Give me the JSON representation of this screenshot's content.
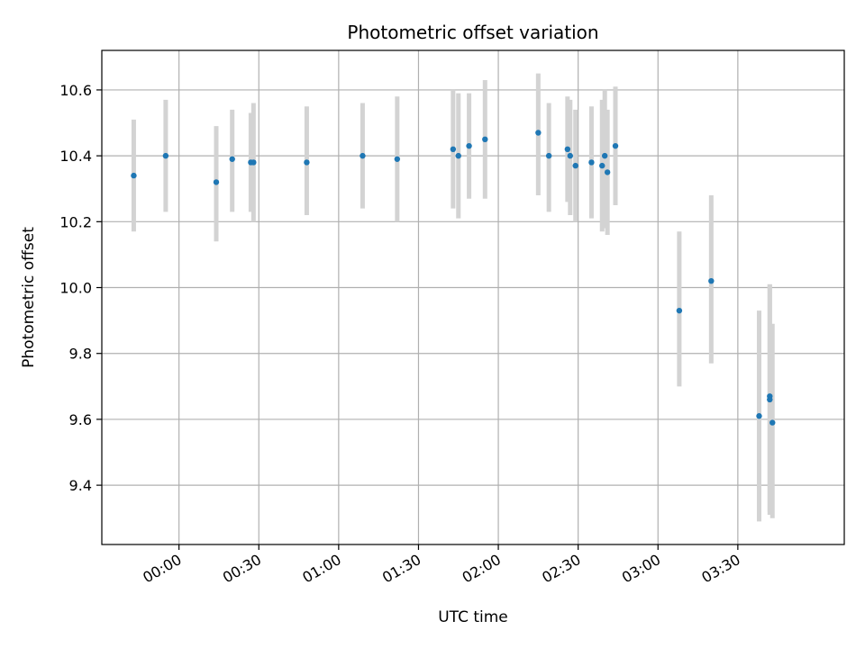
{
  "chart_data": {
    "type": "scatter",
    "title": "Photometric offset variation",
    "xlabel": "UTC time",
    "ylabel": "Photometric offset",
    "grid": true,
    "x_unit": "UTC time (HH:MM)",
    "xlim": [
      "-00:29",
      "04:10"
    ],
    "ylim": [
      9.22,
      10.72
    ],
    "x_ticks": [
      "00:00",
      "00:30",
      "01:00",
      "01:30",
      "02:00",
      "02:30",
      "03:00",
      "03:30"
    ],
    "y_ticks": [
      "9.4",
      "9.6",
      "9.8",
      "10.0",
      "10.2",
      "10.4",
      "10.6"
    ],
    "marker_color": "#1f77b4",
    "errorbar_color": "#d3d3d3",
    "points": [
      {
        "x": "-00:17",
        "y": 10.34,
        "ylow": 10.17,
        "yhigh": 10.51
      },
      {
        "x": "-00:05",
        "y": 10.4,
        "ylow": 10.23,
        "yhigh": 10.57
      },
      {
        "x": "00:14",
        "y": 10.32,
        "ylow": 10.14,
        "yhigh": 10.49
      },
      {
        "x": "00:20",
        "y": 10.39,
        "ylow": 10.23,
        "yhigh": 10.54
      },
      {
        "x": "00:27",
        "y": 10.38,
        "ylow": 10.23,
        "yhigh": 10.53
      },
      {
        "x": "00:28",
        "y": 10.38,
        "ylow": 10.2,
        "yhigh": 10.56
      },
      {
        "x": "00:48",
        "y": 10.38,
        "ylow": 10.22,
        "yhigh": 10.55
      },
      {
        "x": "01:09",
        "y": 10.4,
        "ylow": 10.24,
        "yhigh": 10.56
      },
      {
        "x": "01:22",
        "y": 10.39,
        "ylow": 10.2,
        "yhigh": 10.58
      },
      {
        "x": "01:43",
        "y": 10.42,
        "ylow": 10.24,
        "yhigh": 10.6
      },
      {
        "x": "01:45",
        "y": 10.4,
        "ylow": 10.21,
        "yhigh": 10.59
      },
      {
        "x": "01:49",
        "y": 10.43,
        "ylow": 10.27,
        "yhigh": 10.59
      },
      {
        "x": "01:55",
        "y": 10.45,
        "ylow": 10.27,
        "yhigh": 10.63
      },
      {
        "x": "02:15",
        "y": 10.47,
        "ylow": 10.28,
        "yhigh": 10.65
      },
      {
        "x": "02:19",
        "y": 10.4,
        "ylow": 10.23,
        "yhigh": 10.56
      },
      {
        "x": "02:26",
        "y": 10.42,
        "ylow": 10.26,
        "yhigh": 10.58
      },
      {
        "x": "02:27",
        "y": 10.4,
        "ylow": 10.22,
        "yhigh": 10.57
      },
      {
        "x": "02:29",
        "y": 10.37,
        "ylow": 10.2,
        "yhigh": 10.54
      },
      {
        "x": "02:35",
        "y": 10.38,
        "ylow": 10.21,
        "yhigh": 10.55
      },
      {
        "x": "02:39",
        "y": 10.37,
        "ylow": 10.17,
        "yhigh": 10.57
      },
      {
        "x": "02:40",
        "y": 10.4,
        "ylow": 10.18,
        "yhigh": 10.6
      },
      {
        "x": "02:41",
        "y": 10.35,
        "ylow": 10.16,
        "yhigh": 10.54
      },
      {
        "x": "02:44",
        "y": 10.43,
        "ylow": 10.25,
        "yhigh": 10.61
      },
      {
        "x": "03:08",
        "y": 9.93,
        "ylow": 9.7,
        "yhigh": 10.17
      },
      {
        "x": "03:20",
        "y": 10.02,
        "ylow": 9.77,
        "yhigh": 10.28
      },
      {
        "x": "03:38",
        "y": 9.61,
        "ylow": 9.29,
        "yhigh": 9.93
      },
      {
        "x": "03:42",
        "y": 9.66,
        "ylow": 9.31,
        "yhigh": 10.01
      },
      {
        "x": "03:42",
        "y": 9.67,
        "ylow": 9.32,
        "yhigh": 10.01
      },
      {
        "x": "03:43",
        "y": 9.59,
        "ylow": 9.3,
        "yhigh": 9.89
      }
    ]
  }
}
